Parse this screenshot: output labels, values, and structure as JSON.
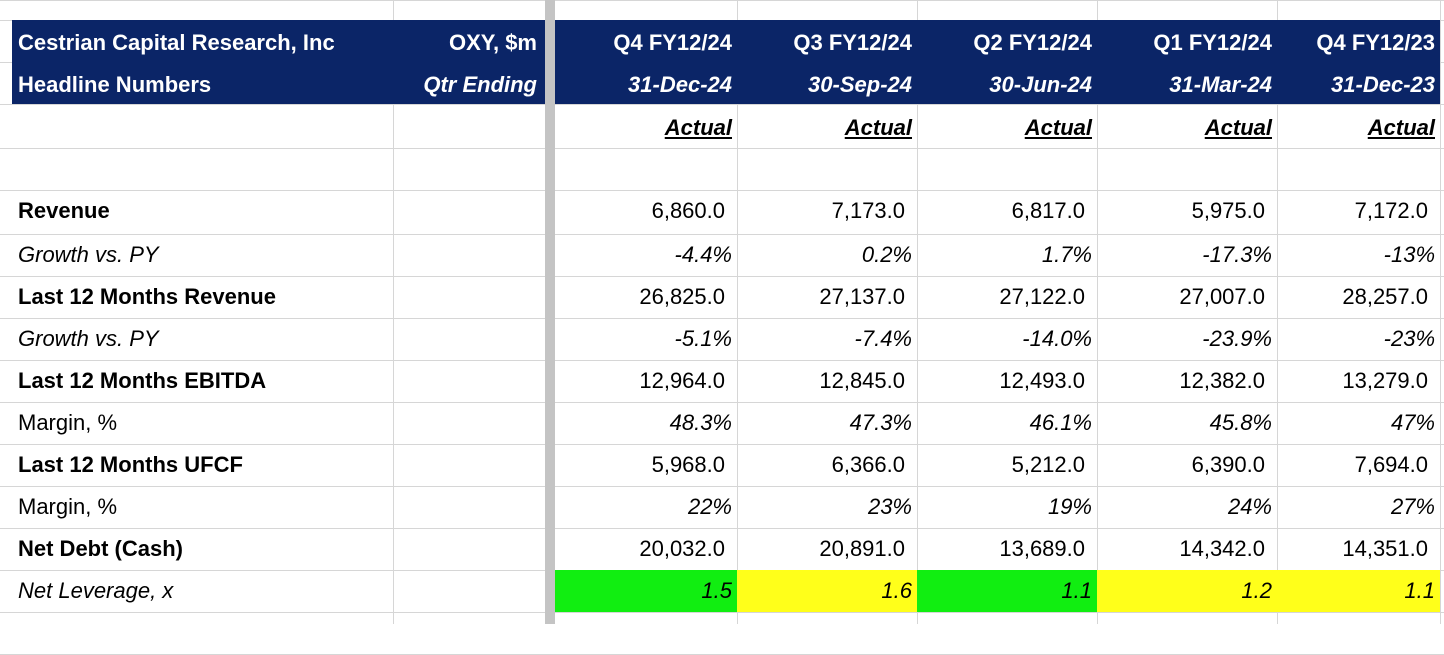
{
  "header": {
    "title": "Cestrian Capital Research, Inc",
    "subtitle": "Headline Numbers",
    "ticker": "OXY, $m",
    "period_label": "Qtr Ending"
  },
  "columns": [
    {
      "quarter": "Q4 FY12/24",
      "date": "31-Dec-24",
      "status": "Actual"
    },
    {
      "quarter": "Q3 FY12/24",
      "date": "30-Sep-24",
      "status": "Actual"
    },
    {
      "quarter": "Q2 FY12/24",
      "date": "30-Jun-24",
      "status": "Actual"
    },
    {
      "quarter": "Q1 FY12/24",
      "date": "31-Mar-24",
      "status": "Actual"
    },
    {
      "quarter": "Q4 FY12/23",
      "date": "31-Dec-23",
      "status": "Actual"
    }
  ],
  "rows": [
    {
      "label": "Revenue",
      "label_style": "bold",
      "value_style": "normal",
      "values": [
        "6,860.0",
        "7,173.0",
        "6,817.0",
        "5,975.0",
        "7,172.0"
      ]
    },
    {
      "label": "Growth vs. PY",
      "label_style": "italic",
      "value_style": "italic",
      "values": [
        "-4.4%",
        "0.2%",
        "1.7%",
        "-17.3%",
        "-13%"
      ]
    },
    {
      "label": "Last 12 Months Revenue",
      "label_style": "bold",
      "value_style": "normal",
      "values": [
        "26,825.0",
        "27,137.0",
        "27,122.0",
        "27,007.0",
        "28,257.0"
      ]
    },
    {
      "label": "Growth vs. PY",
      "label_style": "italic",
      "value_style": "italic",
      "values": [
        "-5.1%",
        "-7.4%",
        "-14.0%",
        "-23.9%",
        "-23%"
      ]
    },
    {
      "label": "Last 12 Months EBITDA",
      "label_style": "bold",
      "value_style": "normal",
      "values": [
        "12,964.0",
        "12,845.0",
        "12,493.0",
        "12,382.0",
        "13,279.0"
      ]
    },
    {
      "label": "Margin, %",
      "label_style": "normal",
      "value_style": "italic",
      "values": [
        "48.3%",
        "47.3%",
        "46.1%",
        "45.8%",
        "47%"
      ]
    },
    {
      "label": "Last 12 Months UFCF",
      "label_style": "bold",
      "value_style": "normal",
      "values": [
        "5,968.0",
        "6,366.0",
        "5,212.0",
        "6,390.0",
        "7,694.0"
      ]
    },
    {
      "label": "Margin, %",
      "label_style": "normal",
      "value_style": "italic",
      "values": [
        "22%",
        "23%",
        "19%",
        "24%",
        "27%"
      ]
    },
    {
      "label": "Net Debt (Cash)",
      "label_style": "bold",
      "value_style": "normal",
      "values": [
        "20,032.0",
        "20,891.0",
        "13,689.0",
        "14,342.0",
        "14,351.0"
      ]
    },
    {
      "label": "Net Leverage, x",
      "label_style": "italic",
      "value_style": "italic",
      "values": [
        "1.5",
        "1.6",
        "1.1",
        "1.2",
        "1.1"
      ],
      "fills": [
        "#11ee11",
        "#ffff1a",
        "#11ee11",
        "#ffff1a",
        "#ffff1a"
      ]
    }
  ]
}
